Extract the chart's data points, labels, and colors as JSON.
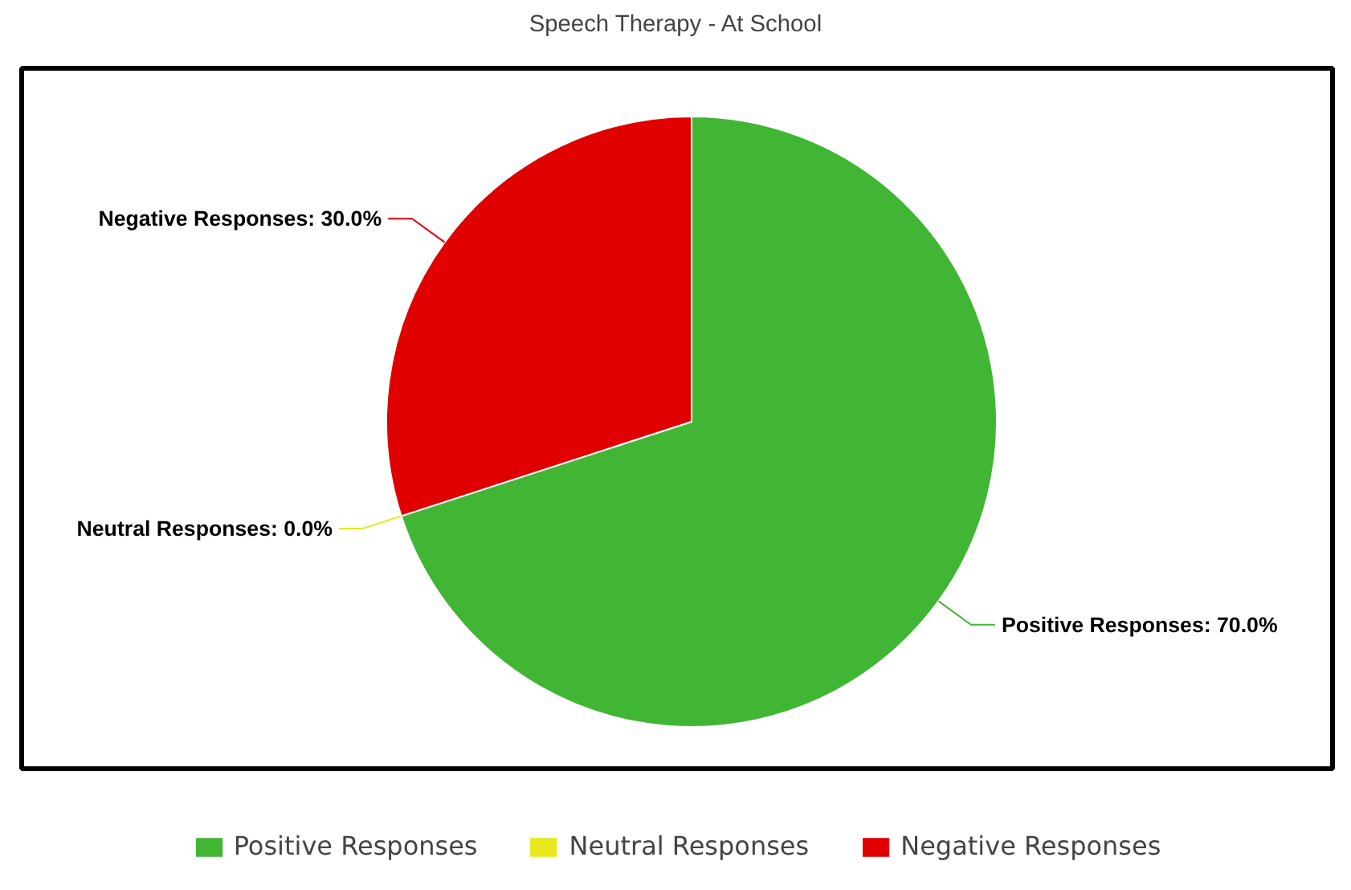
{
  "chart_data": {
    "type": "pie",
    "title": "Speech Therapy - At School",
    "categories": [
      "Positive Responses",
      "Neutral Responses",
      "Negative Responses"
    ],
    "values": [
      70,
      0,
      30
    ],
    "colors": [
      "#41b635",
      "#e8e81c",
      "#e00000"
    ],
    "value_labels": [
      "Positive Responses: 70.0%",
      "Neutral Responses: 0.0%",
      "Negative Responses: 30.0%"
    ],
    "legend": "bottom"
  }
}
